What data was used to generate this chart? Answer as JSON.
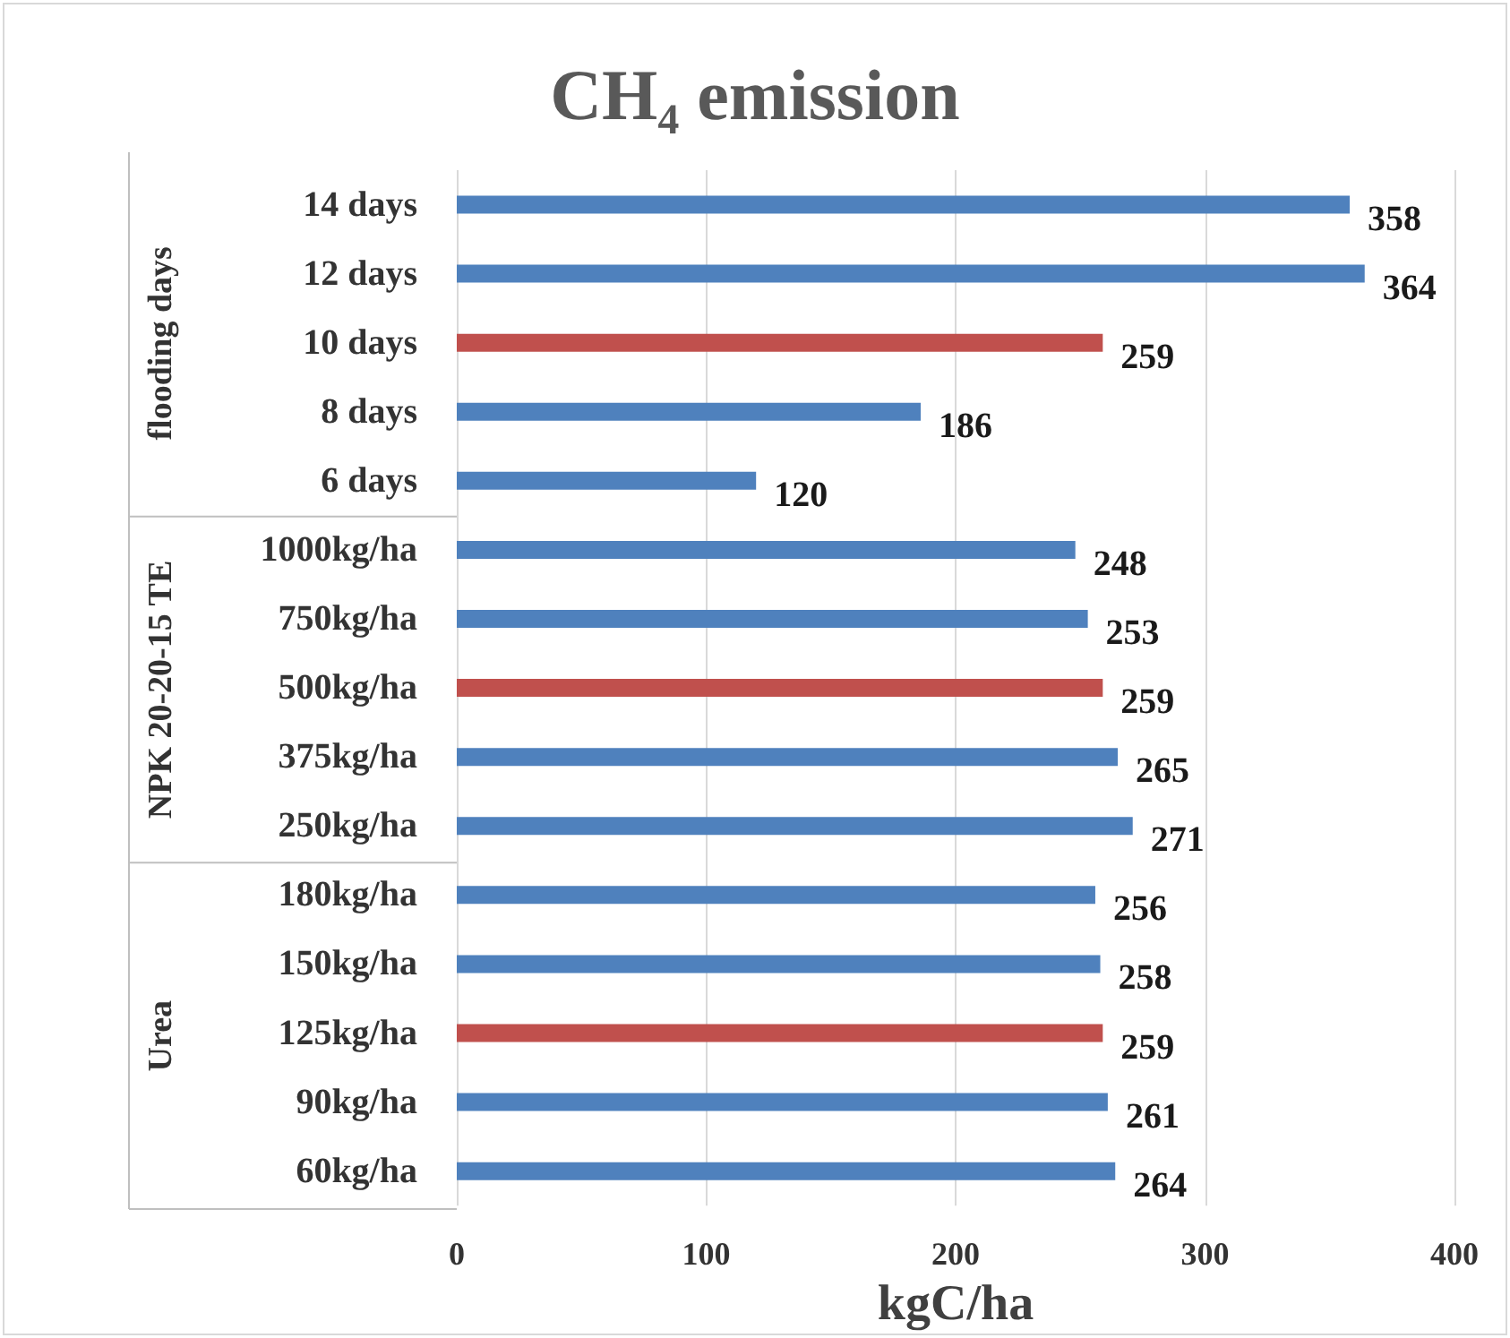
{
  "chart_data": {
    "type": "bar",
    "orientation": "horizontal",
    "title": "CH₄ emission",
    "xlabel": "kgC/ha",
    "categories": [
      "14 days",
      "12 days",
      "10 days",
      "8 days",
      "6 days",
      "1000kg/ha",
      "750kg/ha",
      "500kg/ha",
      "375kg/ha",
      "250kg/ha",
      "180kg/ha",
      "150kg/ha",
      "125kg/ha",
      "90kg/ha",
      "60kg/ha"
    ],
    "values": [
      358,
      364,
      259,
      186,
      120,
      248,
      253,
      259,
      265,
      271,
      256,
      258,
      259,
      261,
      264
    ],
    "colors": [
      "#4f81bd",
      "#4f81bd",
      "#c0504d",
      "#4f81bd",
      "#4f81bd",
      "#4f81bd",
      "#4f81bd",
      "#c0504d",
      "#4f81bd",
      "#4f81bd",
      "#4f81bd",
      "#4f81bd",
      "#c0504d",
      "#4f81bd",
      "#4f81bd"
    ],
    "xlim": [
      0,
      400
    ],
    "xticks": [
      0,
      100,
      200,
      300,
      400
    ],
    "grid": "x",
    "data_labels": true,
    "annotations": [
      "flooding days",
      "NPK 20-20-15 TE",
      "Urea"
    ]
  }
}
